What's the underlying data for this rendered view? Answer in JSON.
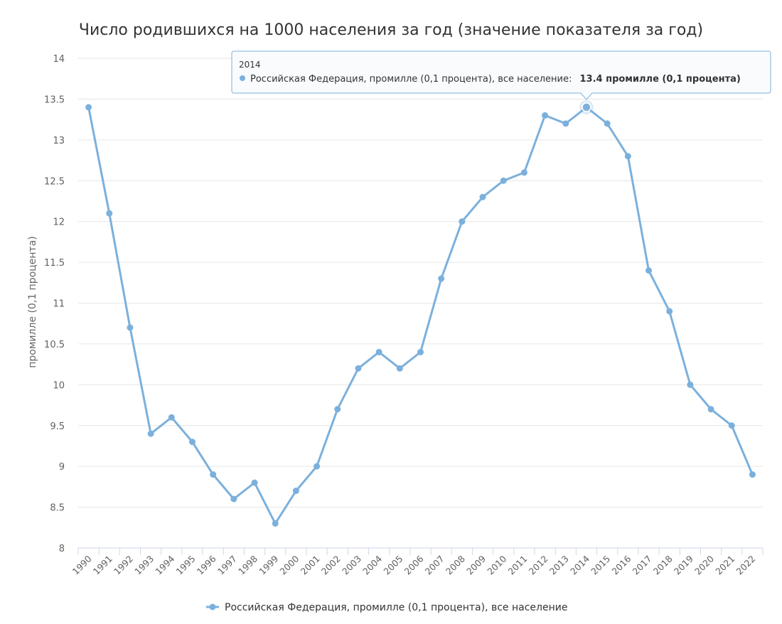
{
  "chart_data": {
    "type": "line",
    "title": "Число родившихся на 1000 населения за год (значение показателя за год)",
    "ylabel": "промилле (0,1 процента)",
    "xlabel": "",
    "ylim": [
      8,
      14
    ],
    "yticks": [
      "8",
      "8.5",
      "9",
      "9.5",
      "10",
      "10.5",
      "11",
      "11.5",
      "12",
      "12.5",
      "13",
      "13.5",
      "14"
    ],
    "categories": [
      "1990",
      "1991",
      "1992",
      "1993",
      "1994",
      "1995",
      "1996",
      "1997",
      "1998",
      "1999",
      "2000",
      "2001",
      "2002",
      "2003",
      "2004",
      "2005",
      "2006",
      "2007",
      "2008",
      "2009",
      "2010",
      "2011",
      "2012",
      "2013",
      "2014",
      "2015",
      "2016",
      "2017",
      "2018",
      "2019",
      "2020",
      "2021",
      "2022"
    ],
    "series": [
      {
        "name": "Российская Федерация, промилле (0,1 процента), все население",
        "color": "#7cb0dc",
        "values": [
          13.4,
          12.1,
          10.7,
          9.4,
          9.6,
          9.3,
          8.9,
          8.6,
          8.8,
          8.3,
          8.7,
          9.0,
          9.7,
          10.2,
          10.4,
          10.2,
          10.4,
          11.3,
          12.0,
          12.3,
          12.5,
          12.6,
          13.3,
          13.2,
          13.4,
          13.2,
          12.8,
          11.4,
          10.9,
          10.0,
          9.7,
          9.5,
          8.9
        ]
      }
    ],
    "grid": true,
    "legend": "bottom-center",
    "tooltip": {
      "category": "2014",
      "series_label": "Российская Федерация, промилле (0,1 процента), все население:",
      "value_text": "13.4 промилле (0,1 процента)"
    }
  }
}
